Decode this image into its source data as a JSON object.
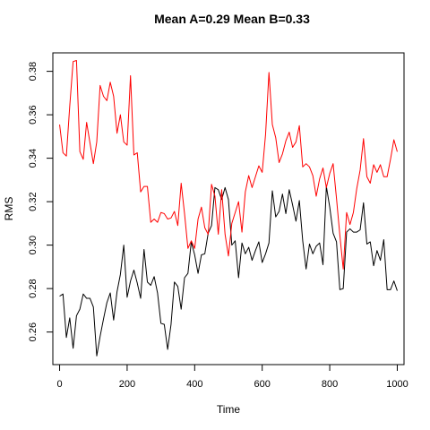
{
  "chart_data": {
    "type": "line",
    "title": "Mean A=0.29 Mean B=0.33",
    "xlabel": "Time",
    "ylabel": "RMS",
    "xlim": [
      -20,
      1020
    ],
    "ylim": [
      0.245,
      0.3885
    ],
    "grid": false,
    "legend": "none",
    "x_ticks": [
      0,
      200,
      400,
      600,
      800,
      1000
    ],
    "x_tick_labels": [
      "0",
      "200",
      "400",
      "600",
      "800",
      "1000"
    ],
    "y_ticks": [
      0.26,
      0.28,
      0.3,
      0.32,
      0.34,
      0.36,
      0.38
    ],
    "y_tick_labels": [
      "0.26",
      "0.28",
      "0.30",
      "0.32",
      "0.34",
      "0.36",
      "0.38"
    ],
    "x": [
      0,
      10,
      20,
      30,
      40,
      50,
      60,
      70,
      80,
      90,
      100,
      110,
      120,
      130,
      140,
      150,
      160,
      170,
      180,
      190,
      200,
      210,
      220,
      230,
      240,
      250,
      260,
      270,
      280,
      290,
      300,
      310,
      320,
      330,
      340,
      350,
      360,
      370,
      380,
      390,
      400,
      410,
      420,
      430,
      440,
      450,
      460,
      470,
      480,
      490,
      500,
      510,
      520,
      530,
      540,
      550,
      560,
      570,
      580,
      590,
      600,
      610,
      620,
      630,
      640,
      650,
      660,
      670,
      680,
      690,
      700,
      710,
      720,
      730,
      740,
      750,
      760,
      770,
      780,
      790,
      800,
      810,
      820,
      830,
      840,
      850,
      860,
      870,
      880,
      890,
      900,
      910,
      920,
      930,
      940,
      950,
      960,
      970,
      980,
      990,
      1000
    ],
    "series": [
      {
        "color": "#000000",
        "values": [
          0.2765,
          0.2775,
          0.2575,
          0.2665,
          0.2525,
          0.2675,
          0.2705,
          0.2775,
          0.2755,
          0.2755,
          0.2715,
          0.249,
          0.258,
          0.266,
          0.2735,
          0.278,
          0.2655,
          0.2785,
          0.2865,
          0.3,
          0.276,
          0.2835,
          0.2885,
          0.2825,
          0.2755,
          0.298,
          0.283,
          0.2815,
          0.2855,
          0.278,
          0.264,
          0.2635,
          0.252,
          0.2635,
          0.283,
          0.281,
          0.2705,
          0.285,
          0.287,
          0.3015,
          0.2955,
          0.287,
          0.2955,
          0.296,
          0.3055,
          0.309,
          0.3265,
          0.3255,
          0.321,
          0.3265,
          0.321,
          0.3,
          0.302,
          0.285,
          0.301,
          0.296,
          0.299,
          0.293,
          0.2975,
          0.3015,
          0.292,
          0.296,
          0.301,
          0.325,
          0.313,
          0.3155,
          0.3235,
          0.3145,
          0.3255,
          0.3185,
          0.311,
          0.3205,
          0.302,
          0.289,
          0.3005,
          0.296,
          0.2995,
          0.301,
          0.291,
          0.327,
          0.3175,
          0.3055,
          0.3015,
          0.2795,
          0.28,
          0.306,
          0.3075,
          0.306,
          0.306,
          0.307,
          0.3195,
          0.3005,
          0.3015,
          0.2905,
          0.2975,
          0.293,
          0.3025,
          0.2795,
          0.2795,
          0.2835,
          0.279
        ]
      },
      {
        "color": "#ff0000",
        "values": [
          0.3555,
          0.3425,
          0.341,
          0.364,
          0.3845,
          0.385,
          0.343,
          0.3395,
          0.3565,
          0.347,
          0.3375,
          0.3475,
          0.3735,
          0.3685,
          0.3665,
          0.375,
          0.3685,
          0.3515,
          0.36,
          0.3475,
          0.346,
          0.378,
          0.3415,
          0.3425,
          0.3245,
          0.327,
          0.327,
          0.3105,
          0.312,
          0.3105,
          0.315,
          0.3145,
          0.312,
          0.3125,
          0.3155,
          0.309,
          0.3285,
          0.3145,
          0.2985,
          0.302,
          0.2985,
          0.312,
          0.3175,
          0.308,
          0.305,
          0.328,
          0.3225,
          0.305,
          0.3255,
          0.305,
          0.295,
          0.31,
          0.315,
          0.32,
          0.306,
          0.3245,
          0.332,
          0.3265,
          0.3315,
          0.3365,
          0.3335,
          0.351,
          0.3795,
          0.3555,
          0.3495,
          0.338,
          0.342,
          0.348,
          0.352,
          0.345,
          0.3475,
          0.355,
          0.336,
          0.3375,
          0.336,
          0.332,
          0.3225,
          0.3305,
          0.3355,
          0.3265,
          0.333,
          0.3375,
          0.3215,
          0.3045,
          0.289,
          0.315,
          0.3095,
          0.315,
          0.326,
          0.3345,
          0.349,
          0.3315,
          0.3285,
          0.337,
          0.3335,
          0.337,
          0.3315,
          0.3315,
          0.3395,
          0.3485,
          0.343
        ]
      }
    ]
  }
}
